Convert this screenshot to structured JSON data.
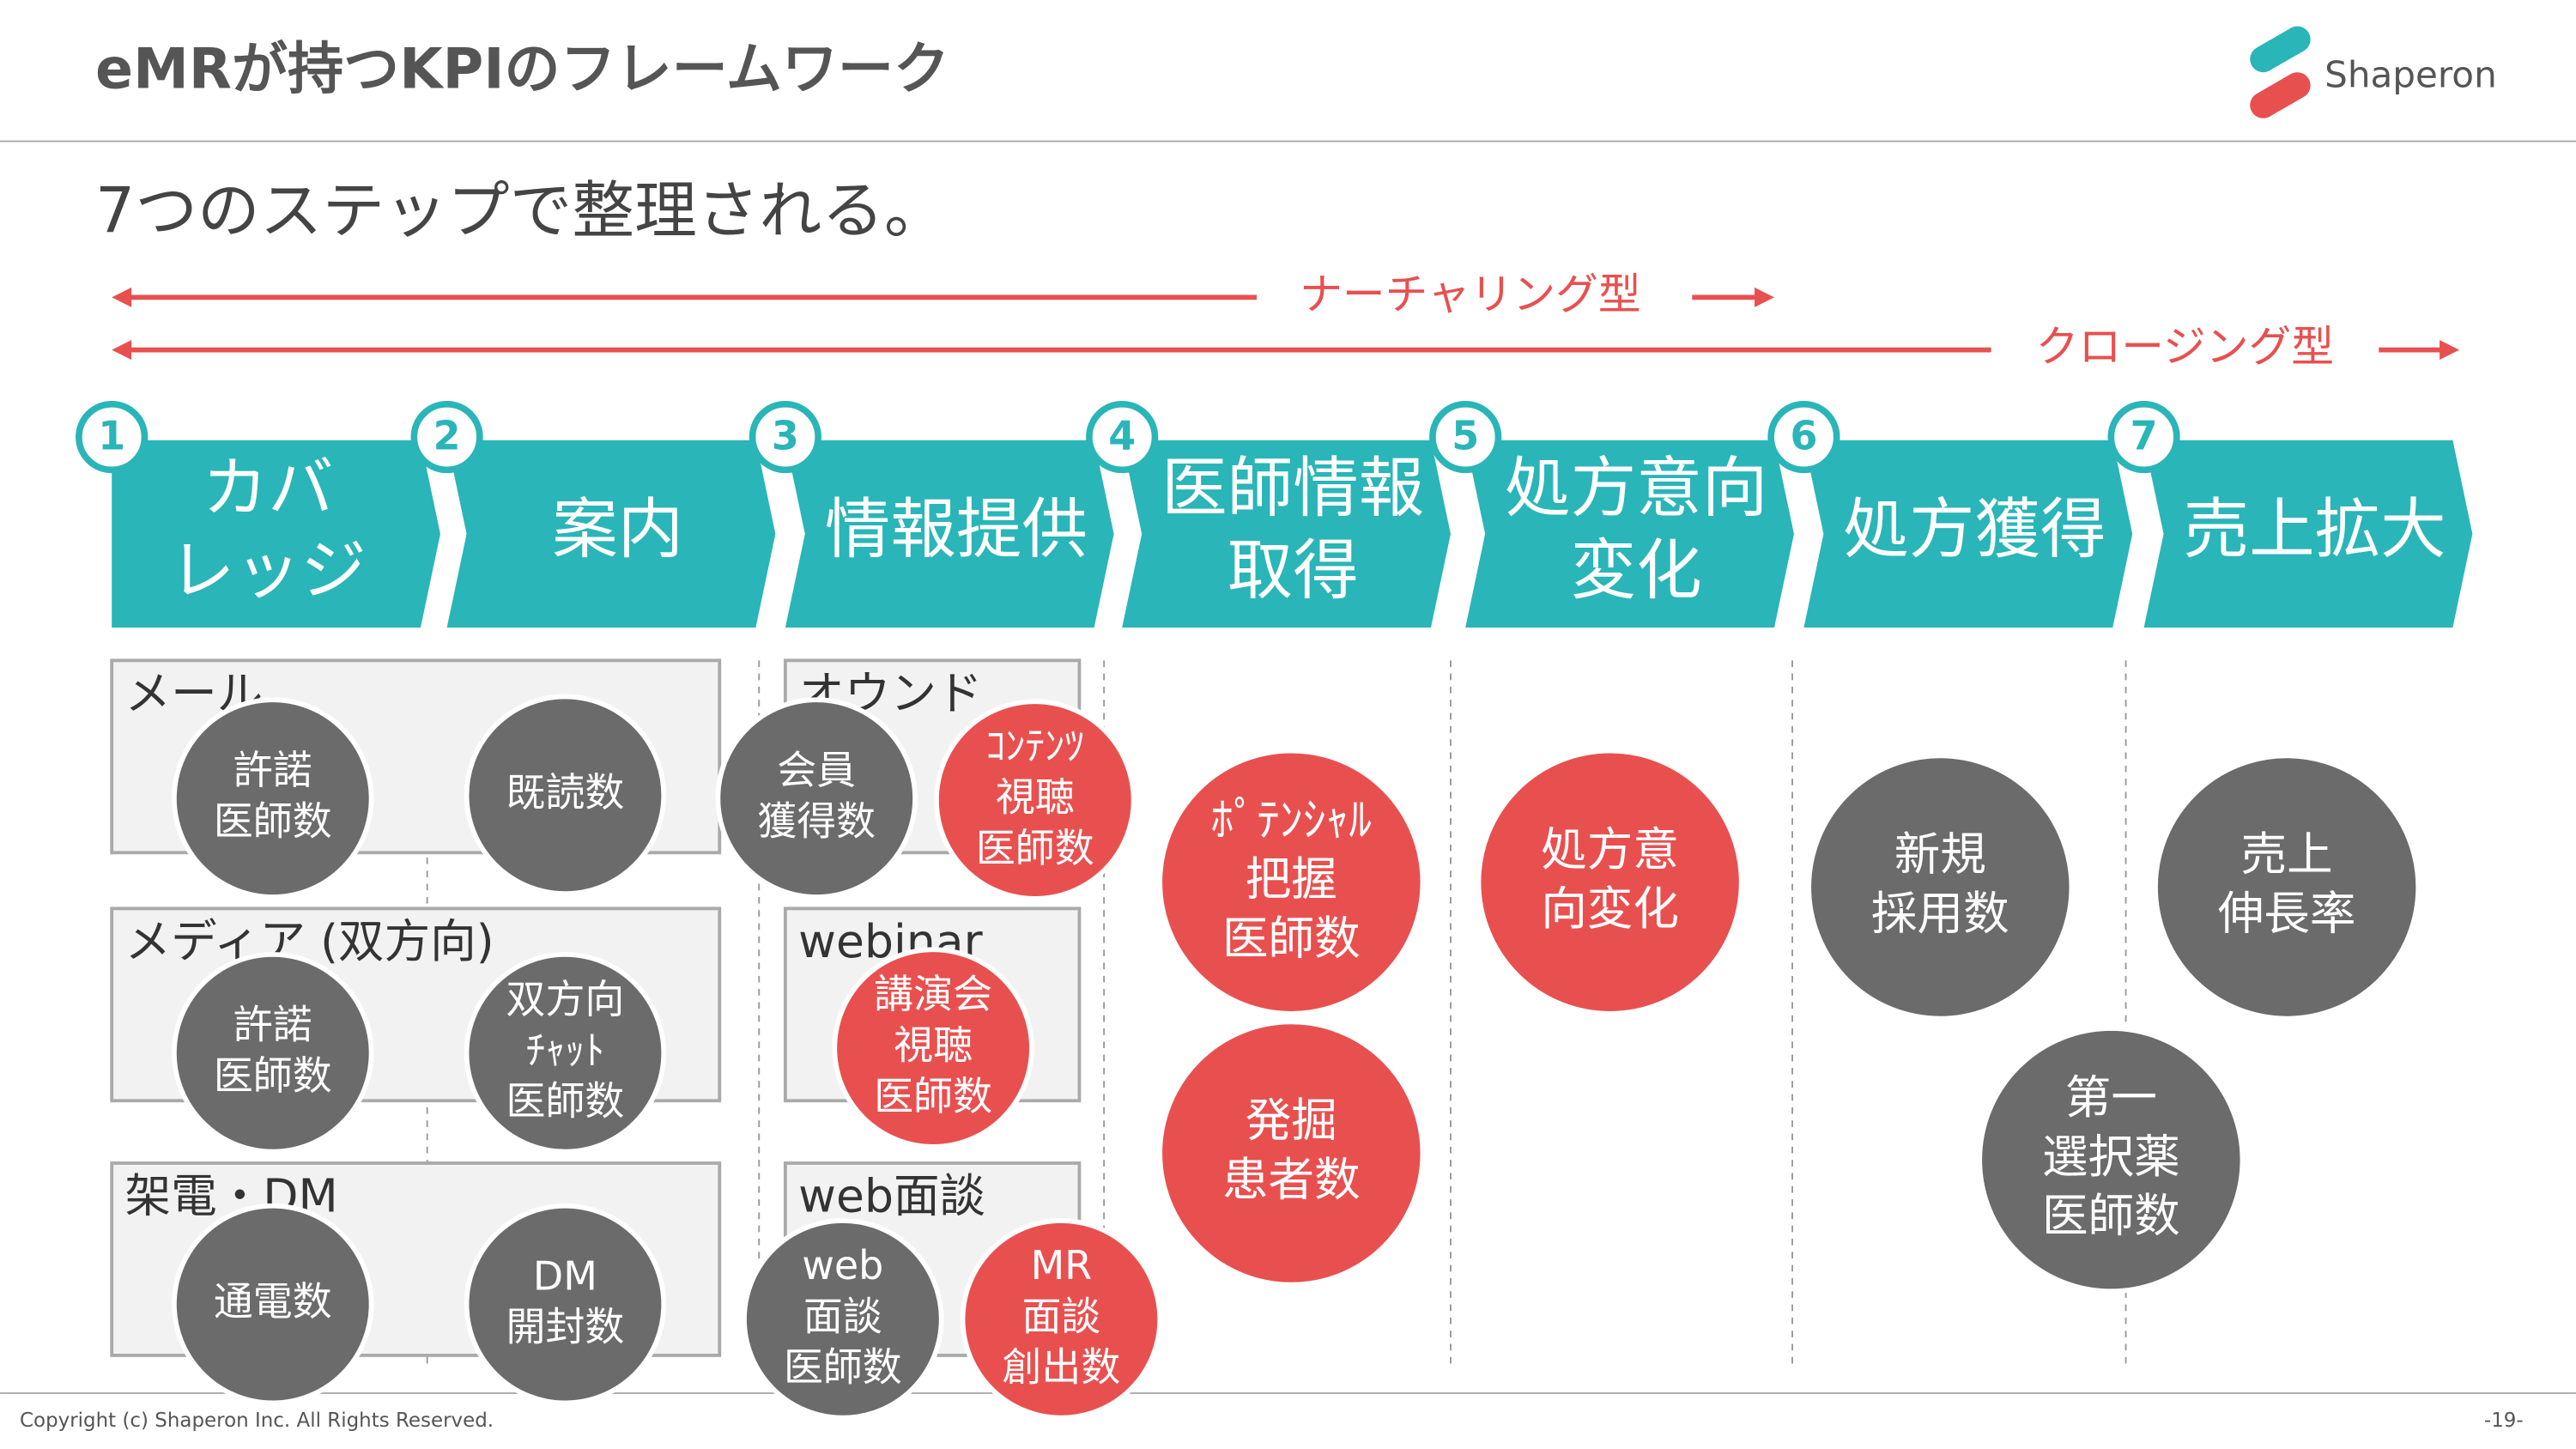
{
  "header": {
    "title": "eMRが持つKPIのフレームワーク",
    "logo": "Shaperon"
  },
  "subtitle": "7つのステップで整理される。",
  "arrows": [
    "ナーチャリング型",
    "クロージング型"
  ],
  "steps": [
    {
      "number": "1",
      "lines": [
        "カバ",
        "レッジ"
      ]
    },
    {
      "number": "2",
      "lines": [
        "案内"
      ]
    },
    {
      "number": "3",
      "lines": [
        "情報提供"
      ]
    },
    {
      "number": "4",
      "lines": [
        "医師情報",
        "取得"
      ]
    },
    {
      "number": "5",
      "lines": [
        "処方意向",
        "変化"
      ]
    },
    {
      "number": "6",
      "lines": [
        "処方獲得"
      ]
    },
    {
      "number": "7",
      "lines": [
        "売上拡大"
      ]
    }
  ],
  "groups": [
    "メール",
    "メディア (双方向)",
    "架電・DM",
    "オウンド",
    "webinar",
    "web面談"
  ],
  "kpis": [
    {
      "lines": [
        "許諾",
        "医師数"
      ],
      "color": "#6b6b6b"
    },
    {
      "lines": [
        "既読数"
      ],
      "color": "#6b6b6b"
    },
    {
      "lines": [
        "会員",
        "獲得数"
      ],
      "color": "#6b6b6b"
    },
    {
      "lines": [
        "ｺﾝﾃﾝﾂ",
        "視聴",
        "医師数"
      ],
      "color": "#e8504f"
    },
    {
      "lines": [
        "ﾎﾟﾃﾝｼｬﾙ",
        "把握",
        "医師数"
      ],
      "color": "#e8504f"
    },
    {
      "lines": [
        "発掘",
        "患者数"
      ],
      "color": "#e8504f"
    },
    {
      "lines": [
        "処方意",
        "向変化"
      ],
      "color": "#e8504f"
    },
    {
      "lines": [
        "新規",
        "採用数"
      ],
      "color": "#6b6b6b"
    },
    {
      "lines": [
        "売上",
        "伸長率"
      ],
      "color": "#6b6b6b"
    },
    {
      "lines": [
        "第一",
        "選択薬",
        "医師数"
      ],
      "color": "#6b6b6b"
    },
    {
      "lines": [
        "許諾",
        "医師数"
      ],
      "color": "#6b6b6b"
    },
    {
      "lines": [
        "双方向",
        "ﾁｬｯﾄ",
        "医師数"
      ],
      "color": "#6b6b6b"
    },
    {
      "lines": [
        "講演会",
        "視聴",
        "医師数"
      ],
      "color": "#e8504f"
    },
    {
      "lines": [
        "通電数"
      ],
      "color": "#6b6b6b"
    },
    {
      "lines": [
        "DM",
        "開封数"
      ],
      "color": "#6b6b6b"
    },
    {
      "lines": [
        "web",
        "面談",
        "医師数"
      ],
      "color": "#6b6b6b"
    },
    {
      "lines": [
        "MR",
        "面談",
        "創出数"
      ],
      "color": "#e8504f"
    }
  ],
  "footer": {
    "copyright": "Copyright (c) Shaperon Inc.  All Rights Reserved.",
    "page": "-19-"
  }
}
